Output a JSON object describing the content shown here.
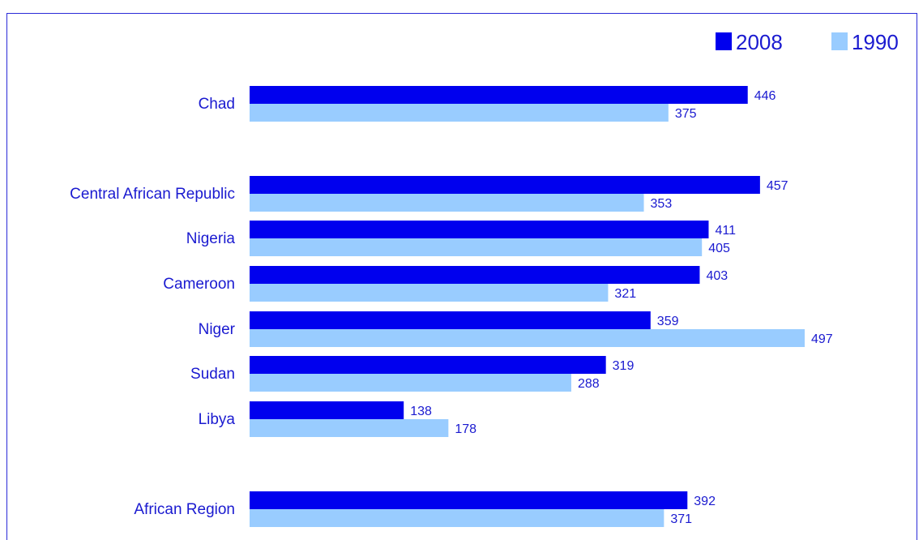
{
  "chart_data": {
    "type": "bar",
    "orientation": "horizontal",
    "categories": [
      "Chad",
      "Central African Republic",
      "Nigeria",
      "Cameroon",
      "Niger",
      "Sudan",
      "Libya",
      "African Region"
    ],
    "series": [
      {
        "name": "2008",
        "color": "#0000ee",
        "values": [
          446,
          457,
          411,
          403,
          359,
          319,
          138,
          392
        ]
      },
      {
        "name": "1990",
        "color": "#99ccff",
        "values": [
          375,
          353,
          405,
          321,
          497,
          288,
          178,
          371
        ]
      }
    ],
    "xlim": [
      0,
      600
    ],
    "grid": false,
    "legend_position": "top-right",
    "label_color": "#1a1ad0"
  }
}
